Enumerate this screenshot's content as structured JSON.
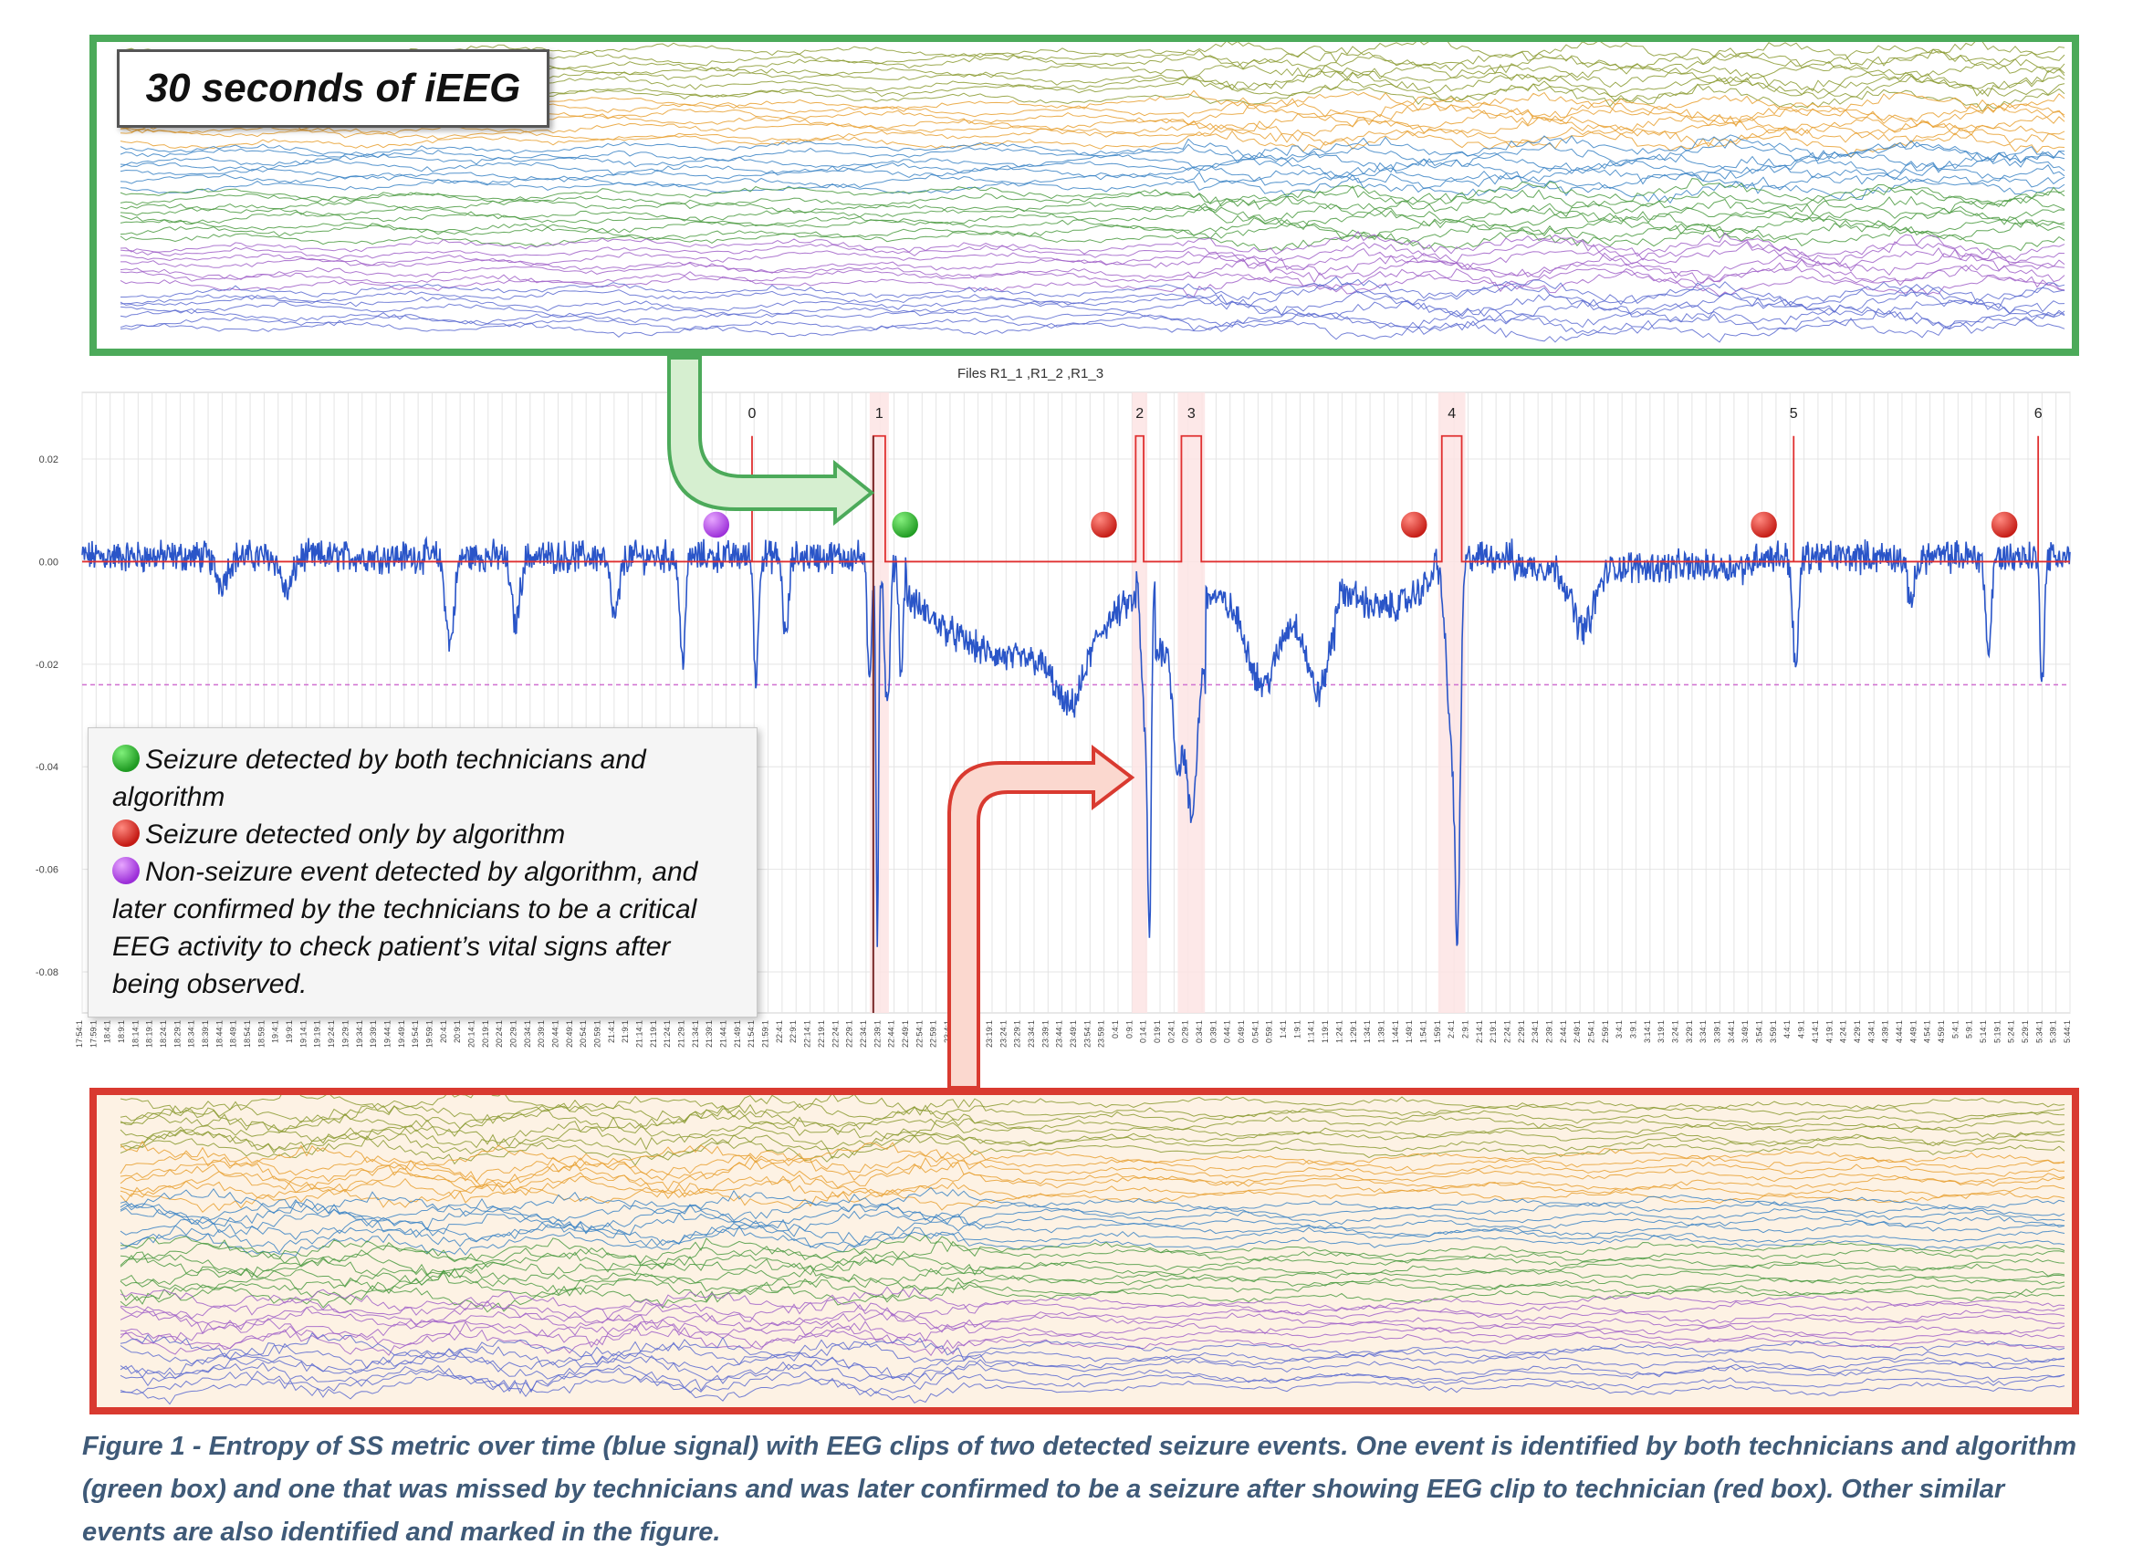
{
  "chart_data": {
    "type": "line",
    "title": "Files R1_1 ,R1_2 ,R1_3",
    "y_ticks": [
      "0.02",
      "0.00",
      "-0.02",
      "-0.04",
      "-0.06",
      "-0.08"
    ],
    "ylim": [
      -0.088,
      0.033
    ],
    "x_ticks": [
      "17:54:1",
      "17:59:1",
      "18:4:1",
      "18:9:1",
      "18:14:1",
      "18:19:1",
      "18:24:1",
      "18:29:1",
      "18:34:1",
      "18:39:1",
      "18:44:1",
      "18:49:1",
      "18:54:1",
      "18:59:1",
      "19:4:1",
      "19:9:1",
      "19:14:1",
      "19:19:1",
      "19:24:1",
      "19:29:1",
      "19:34:1",
      "19:39:1",
      "19:44:1",
      "19:49:1",
      "19:54:1",
      "19:59:1",
      "20:4:1",
      "20:9:1",
      "20:14:1",
      "20:19:1",
      "20:24:1",
      "20:29:1",
      "20:34:1",
      "20:39:1",
      "20:44:1",
      "20:49:1",
      "20:54:1",
      "20:59:1",
      "21:4:1",
      "21:9:1",
      "21:14:1",
      "21:19:1",
      "21:24:1",
      "21:29:1",
      "21:34:1",
      "21:39:1",
      "21:44:1",
      "21:49:1",
      "21:54:1",
      "21:59:1",
      "22:4:1",
      "22:9:1",
      "22:14:1",
      "22:19:1",
      "22:24:1",
      "22:29:1",
      "22:34:1",
      "22:39:1",
      "22:44:1",
      "22:49:1",
      "22:54:1",
      "22:59:1",
      "23:4:1",
      "23:9:1",
      "23:14:1",
      "23:19:1",
      "23:24:1",
      "23:29:1",
      "23:34:1",
      "23:39:1",
      "23:44:1",
      "23:49:1",
      "23:54:1",
      "23:59:1",
      "0:4:1",
      "0:9:1",
      "0:14:1",
      "0:19:1",
      "0:24:1",
      "0:29:1",
      "0:34:1",
      "0:39:1",
      "0:44:1",
      "0:49:1",
      "0:54:1",
      "0:59:1",
      "1:4:1",
      "1:9:1",
      "1:14:1",
      "1:19:1",
      "1:24:1",
      "1:29:1",
      "1:34:1",
      "1:39:1",
      "1:44:1",
      "1:49:1",
      "1:54:1",
      "1:59:1",
      "2:4:1",
      "2:9:1",
      "2:14:1",
      "2:19:1",
      "2:24:1",
      "2:29:1",
      "2:34:1",
      "2:39:1",
      "2:44:1",
      "2:49:1",
      "2:54:1",
      "2:59:1",
      "3:4:1",
      "3:9:1",
      "3:14:1",
      "3:19:1",
      "3:24:1",
      "3:29:1",
      "3:34:1",
      "3:39:1",
      "3:44:1",
      "3:49:1",
      "3:54:1",
      "3:59:1",
      "4:4:1",
      "4:9:1",
      "4:14:1",
      "4:19:1",
      "4:24:1",
      "4:29:1",
      "4:34:1",
      "4:39:1",
      "4:44:1",
      "4:49:1",
      "4:54:1",
      "4:59:1",
      "5:4:1",
      "5:9:1",
      "5:14:1",
      "5:19:1",
      "5:24:1",
      "5:29:1",
      "5:34:1",
      "5:39:1",
      "5:44:1"
    ],
    "threshold": -0.024,
    "events": [
      {
        "label": "0",
        "t": 0.337,
        "width": 0.0
      },
      {
        "label": "1",
        "t": 0.398,
        "width": 0.006
      },
      {
        "label": "2",
        "t": 0.53,
        "width": 0.004
      },
      {
        "label": "3",
        "t": 0.553,
        "width": 0.01
      },
      {
        "label": "4",
        "t": 0.684,
        "width": 0.01
      },
      {
        "label": "5",
        "t": 0.861,
        "width": 0.0
      },
      {
        "label": "6",
        "t": 0.984,
        "width": 0.0
      }
    ],
    "event_pulse_height": 0.0245,
    "markers": [
      {
        "type": "purple",
        "t": 0.319
      },
      {
        "type": "green",
        "t": 0.414
      },
      {
        "type": "red",
        "t": 0.514
      },
      {
        "type": "red",
        "t": 0.67
      },
      {
        "type": "red",
        "t": 0.846
      },
      {
        "type": "red",
        "t": 0.967
      }
    ],
    "marker_y": 0.0072,
    "signal_baseline": 0.001,
    "signal_dips": [
      {
        "t": 0.07,
        "depth": -0.005,
        "w": 0.004
      },
      {
        "t": 0.103,
        "depth": -0.007,
        "w": 0.004
      },
      {
        "t": 0.185,
        "depth": -0.017,
        "w": 0.003
      },
      {
        "t": 0.218,
        "depth": -0.013,
        "w": 0.003
      },
      {
        "t": 0.268,
        "depth": -0.012,
        "w": 0.003
      },
      {
        "t": 0.302,
        "depth": -0.02,
        "w": 0.002
      },
      {
        "t": 0.339,
        "depth": -0.025,
        "w": 0.0015
      },
      {
        "t": 0.354,
        "depth": -0.016,
        "w": 0.002
      },
      {
        "t": 0.396,
        "depth": -0.025,
        "w": 0.0015
      },
      {
        "t": 0.4,
        "depth": -0.075,
        "w": 0.0009
      },
      {
        "t": 0.405,
        "depth": -0.03,
        "w": 0.002
      },
      {
        "t": 0.412,
        "depth": -0.023,
        "w": 0.0015
      },
      {
        "t": 0.497,
        "depth": -0.012,
        "w": 0.01
      },
      {
        "t": 0.535,
        "depth": -0.035,
        "w": 0.003
      },
      {
        "t": 0.537,
        "depth": -0.052,
        "w": 0.0012
      },
      {
        "t": 0.551,
        "depth": -0.022,
        "w": 0.003
      },
      {
        "t": 0.558,
        "depth": -0.033,
        "w": 0.004
      },
      {
        "t": 0.594,
        "depth": -0.014,
        "w": 0.01
      },
      {
        "t": 0.622,
        "depth": -0.018,
        "w": 0.008
      },
      {
        "t": 0.689,
        "depth": -0.035,
        "w": 0.004
      },
      {
        "t": 0.692,
        "depth": -0.055,
        "w": 0.0018
      },
      {
        "t": 0.755,
        "depth": -0.012,
        "w": 0.008
      },
      {
        "t": 0.862,
        "depth": -0.022,
        "w": 0.002
      },
      {
        "t": 0.92,
        "depth": -0.008,
        "w": 0.003
      },
      {
        "t": 0.959,
        "depth": -0.019,
        "w": 0.002
      },
      {
        "t": 0.986,
        "depth": -0.024,
        "w": 0.0015
      }
    ],
    "signal_plateaus": [
      {
        "t0": 0.415,
        "t1": 0.53,
        "level": -0.008,
        "slope": -0.012
      },
      {
        "t0": 0.54,
        "t1": 0.565,
        "level": -0.018,
        "slope": 0.0
      },
      {
        "t0": 0.565,
        "t1": 0.63,
        "level": -0.007,
        "slope": -0.004
      },
      {
        "t0": 0.63,
        "t1": 0.68,
        "level": -0.004,
        "slope": -0.006
      },
      {
        "t0": 0.72,
        "t1": 0.84,
        "level": -0.002,
        "slope": 0.0
      }
    ]
  },
  "clip_label": "30 seconds of iEEG",
  "legend": {
    "green": "Seizure detected by both technicians and algorithm",
    "red": "Seizure detected only by algorithm",
    "purple": "Non-seizure event detected by algorithm, and later confirmed by the technicians to be a critical EEG activity to check patient’s vital signs after being observed."
  },
  "caption": "Figure 1 - Entropy of SS metric over time (blue signal)  with EEG clips of two detected seizure events. One event is identified by both technicians and algorithm (green box) and one that was missed by technicians and was later confirmed to be a seizure after showing EEG clip to technician (red box). Other similar events are also identified and marked in the figure.",
  "colors": {
    "signal": "#2a55c8",
    "event_line": "#e03030",
    "threshold": "#d070d0",
    "green_box": "#4caa5a",
    "red_box": "#d93a30",
    "trace_palette": [
      "#8a9a30",
      "#e8a030",
      "#3a82c4",
      "#4a9a40",
      "#a060c8",
      "#5a6ad0"
    ]
  }
}
